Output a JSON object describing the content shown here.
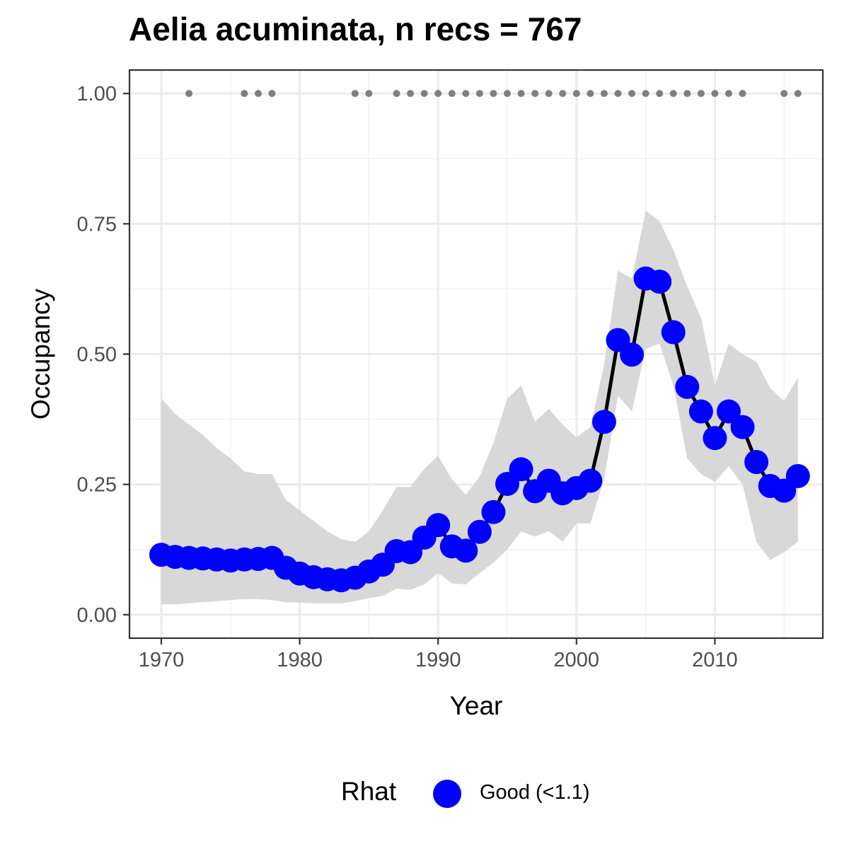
{
  "chart_data": {
    "type": "line",
    "title": "Aelia acuminata, n recs = 767",
    "xlabel": "Year",
    "ylabel": "Occupancy",
    "xlim": [
      1967.7,
      2017.8
    ],
    "ylim": [
      -0.045,
      1.045
    ],
    "x_ticks": [
      1970,
      1980,
      1990,
      2000,
      2010
    ],
    "x_tick_labels": [
      "1970",
      "1980",
      "1990",
      "2000",
      "2010"
    ],
    "y_ticks": [
      0,
      0.25,
      0.5,
      0.75,
      1
    ],
    "y_tick_labels": [
      "0.00",
      "0.25",
      "0.50",
      "0.75",
      "1.00"
    ],
    "grid": true,
    "legend_position": "bottom",
    "legend": {
      "title": "Rhat",
      "label": "Good (<1.1)"
    },
    "colors": {
      "points": "#0000ff",
      "line": "#000000",
      "ribbon": "#d6d6d6",
      "record_dots": "#7f7f7f"
    },
    "series": [
      {
        "x": [
          1970,
          1971,
          1972,
          1973,
          1974,
          1975,
          1976,
          1977,
          1978,
          1979,
          1980,
          1981,
          1982,
          1983,
          1984,
          1985,
          1986,
          1987,
          1988,
          1989,
          1990,
          1991,
          1992,
          1993,
          1994,
          1995,
          1996,
          1997,
          1998,
          1999,
          2000,
          2001,
          2002,
          2003,
          2004,
          2005,
          2006,
          2007,
          2008,
          2009,
          2010,
          2011,
          2012,
          2013,
          2014,
          2015,
          2016
        ],
        "values": [
          0.115,
          0.111,
          0.109,
          0.108,
          0.106,
          0.104,
          0.106,
          0.107,
          0.109,
          0.09,
          0.079,
          0.072,
          0.068,
          0.066,
          0.071,
          0.083,
          0.096,
          0.122,
          0.12,
          0.148,
          0.172,
          0.131,
          0.123,
          0.159,
          0.197,
          0.251,
          0.279,
          0.237,
          0.257,
          0.233,
          0.243,
          0.257,
          0.37,
          0.527,
          0.499,
          0.645,
          0.639,
          0.542,
          0.437,
          0.39,
          0.339,
          0.39,
          0.36,
          0.293,
          0.247,
          0.238,
          0.266
        ],
        "lower": [
          0.02,
          0.02,
          0.022,
          0.024,
          0.026,
          0.028,
          0.03,
          0.03,
          0.028,
          0.024,
          0.023,
          0.022,
          0.022,
          0.022,
          0.026,
          0.032,
          0.036,
          0.05,
          0.048,
          0.058,
          0.08,
          0.06,
          0.058,
          0.08,
          0.1,
          0.125,
          0.16,
          0.15,
          0.16,
          0.14,
          0.175,
          0.175,
          0.26,
          0.42,
          0.39,
          0.51,
          0.52,
          0.44,
          0.3,
          0.27,
          0.255,
          0.285,
          0.25,
          0.14,
          0.105,
          0.12,
          0.14
        ],
        "upper": [
          0.415,
          0.385,
          0.365,
          0.345,
          0.32,
          0.3,
          0.275,
          0.27,
          0.27,
          0.22,
          0.2,
          0.18,
          0.16,
          0.145,
          0.14,
          0.16,
          0.2,
          0.245,
          0.245,
          0.28,
          0.305,
          0.26,
          0.23,
          0.265,
          0.33,
          0.415,
          0.44,
          0.37,
          0.395,
          0.365,
          0.34,
          0.36,
          0.48,
          0.66,
          0.645,
          0.775,
          0.755,
          0.7,
          0.63,
          0.57,
          0.44,
          0.52,
          0.5,
          0.485,
          0.435,
          0.41,
          0.455
        ]
      }
    ],
    "record_years": [
      1972,
      1976,
      1977,
      1978,
      1984,
      1985,
      1987,
      1988,
      1989,
      1990,
      1991,
      1992,
      1993,
      1994,
      1995,
      1996,
      1997,
      1998,
      1999,
      2000,
      2001,
      2002,
      2003,
      2004,
      2005,
      2006,
      2007,
      2008,
      2009,
      2010,
      2011,
      2012,
      2015,
      2016
    ],
    "record_y": 1
  }
}
